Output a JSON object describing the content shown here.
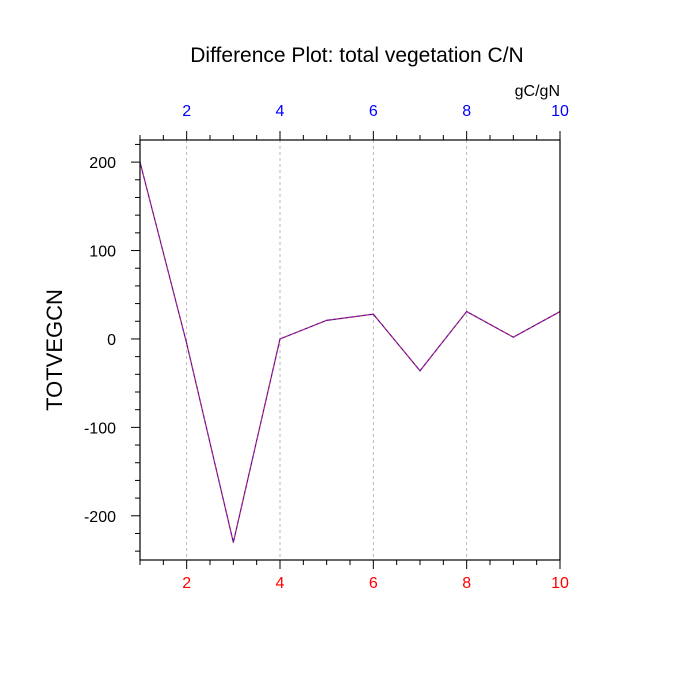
{
  "chart_data": {
    "type": "line",
    "title": "Difference Plot: total vegetation C/N",
    "ylabel": "TOTVEGCN",
    "xlabel": "",
    "units_label": "gC/gN",
    "x": [
      1,
      2,
      3,
      4,
      5,
      6,
      7,
      8,
      9,
      10
    ],
    "series": [
      {
        "values": [
          200,
          -5,
          -230,
          0,
          21,
          28,
          -36,
          31,
          2,
          31
        ]
      }
    ],
    "xlim": [
      1,
      10
    ],
    "ylim": [
      -250,
      225
    ],
    "x_ticks": [
      2,
      4,
      6,
      8,
      10
    ],
    "y_ticks": [
      200,
      100,
      0,
      -100,
      -200
    ],
    "x_tick_labels": [
      "2",
      "4",
      "6",
      "8",
      "10"
    ],
    "y_tick_labels": [
      "200",
      "100",
      "0",
      "-100",
      "-200"
    ],
    "x_minor_step": 0.5,
    "y_minor_step": 20,
    "vertical_grid": true,
    "horizontal_grid": false,
    "colors": {
      "line": "#6600aa",
      "line_dash": "#c04040",
      "bottom_tick_labels": "#ff0000",
      "top_tick_labels": "#0000ff",
      "grid": "#aaaaaa"
    }
  }
}
